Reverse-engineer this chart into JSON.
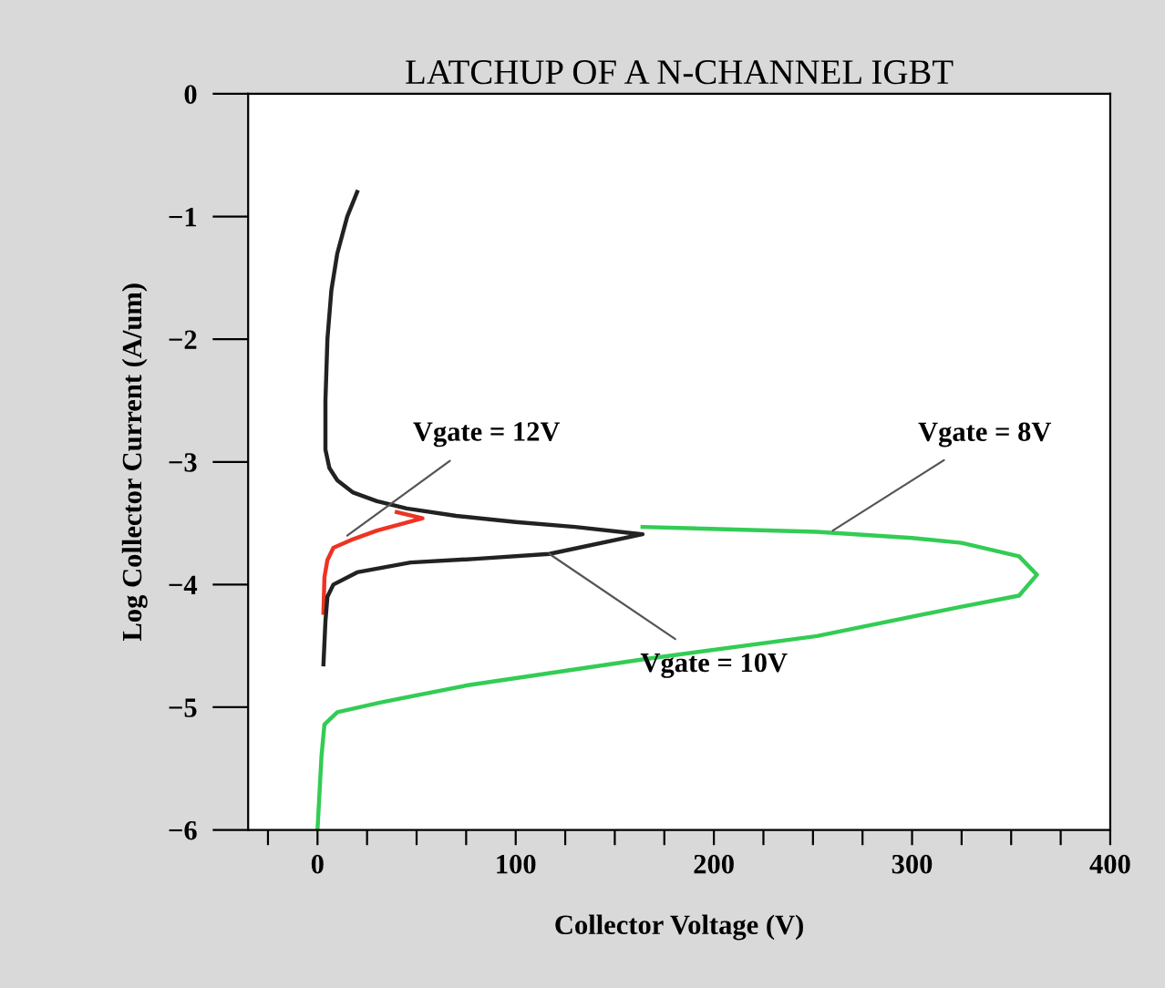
{
  "chart_data": {
    "type": "line",
    "title": "LATCHUP OF A N-CHANNEL IGBT",
    "xlabel": "Collector Voltage (V)",
    "ylabel": "Log Collector Current (A/um)",
    "xlim": [
      -35,
      400
    ],
    "ylim": [
      -6,
      0
    ],
    "xticks": [
      {
        "value": -25,
        "label": null
      },
      0,
      {
        "value": 25,
        "label": null
      },
      {
        "value": 50,
        "label": null
      },
      {
        "value": 75,
        "label": null
      },
      100,
      {
        "value": 125,
        "label": null
      },
      {
        "value": 150,
        "label": null
      },
      {
        "value": 175,
        "label": null
      },
      200,
      {
        "value": 225,
        "label": null
      },
      {
        "value": 250,
        "label": null
      },
      {
        "value": 275,
        "label": null
      },
      300,
      {
        "value": 325,
        "label": null
      },
      {
        "value": 350,
        "label": null
      },
      {
        "value": 375,
        "label": null
      },
      400
    ],
    "yticks": [
      -6,
      -5,
      -4,
      -3,
      -2,
      -1,
      0
    ],
    "grid": false,
    "legend": false,
    "marker": "none",
    "line_style": "solid",
    "series": [
      {
        "color": "#33cc55",
        "x": [
          164,
          252,
          300,
          325,
          354,
          363,
          354,
          325,
          252,
          164,
          76,
          32,
          10,
          3.5,
          2,
          1,
          0
        ],
        "values": [
          -3.53,
          -3.57,
          -3.62,
          -3.66,
          -3.77,
          -3.92,
          -4.09,
          -4.18,
          -4.42,
          -4.61,
          -4.82,
          -4.96,
          -5.04,
          -5.14,
          -5.4,
          -5.7,
          -6.0
        ]
      },
      {
        "color": "#ee3322",
        "x": [
          40,
          53,
          30,
          18,
          8,
          5,
          3.5,
          3
        ],
        "values": [
          -3.41,
          -3.46,
          -3.56,
          -3.63,
          -3.7,
          -3.8,
          -3.94,
          -4.23
        ]
      },
      {
        "color": "#222222",
        "x": [
          20,
          15,
          10,
          7,
          5,
          4,
          4,
          6,
          10,
          18,
          30,
          45,
          70,
          100,
          130,
          164,
          117,
          80,
          47,
          20,
          8,
          5,
          4,
          3
        ],
        "values": [
          -0.8,
          -1.0,
          -1.3,
          -1.6,
          -2.0,
          -2.5,
          -2.9,
          -3.05,
          -3.15,
          -3.25,
          -3.32,
          -3.38,
          -3.44,
          -3.49,
          -3.53,
          -3.59,
          -3.75,
          -3.79,
          -3.82,
          -3.9,
          -4.0,
          -4.1,
          -4.3,
          -4.65
        ]
      }
    ],
    "annotations": [
      {
        "text": "Vgate = 12V",
        "x": 15,
        "y": -3.6
      },
      {
        "text": "Vgate = 10V",
        "x": 117,
        "y": -3.75
      },
      {
        "text": "Vgate = 8V",
        "x": 260,
        "y": -3.56
      }
    ]
  }
}
